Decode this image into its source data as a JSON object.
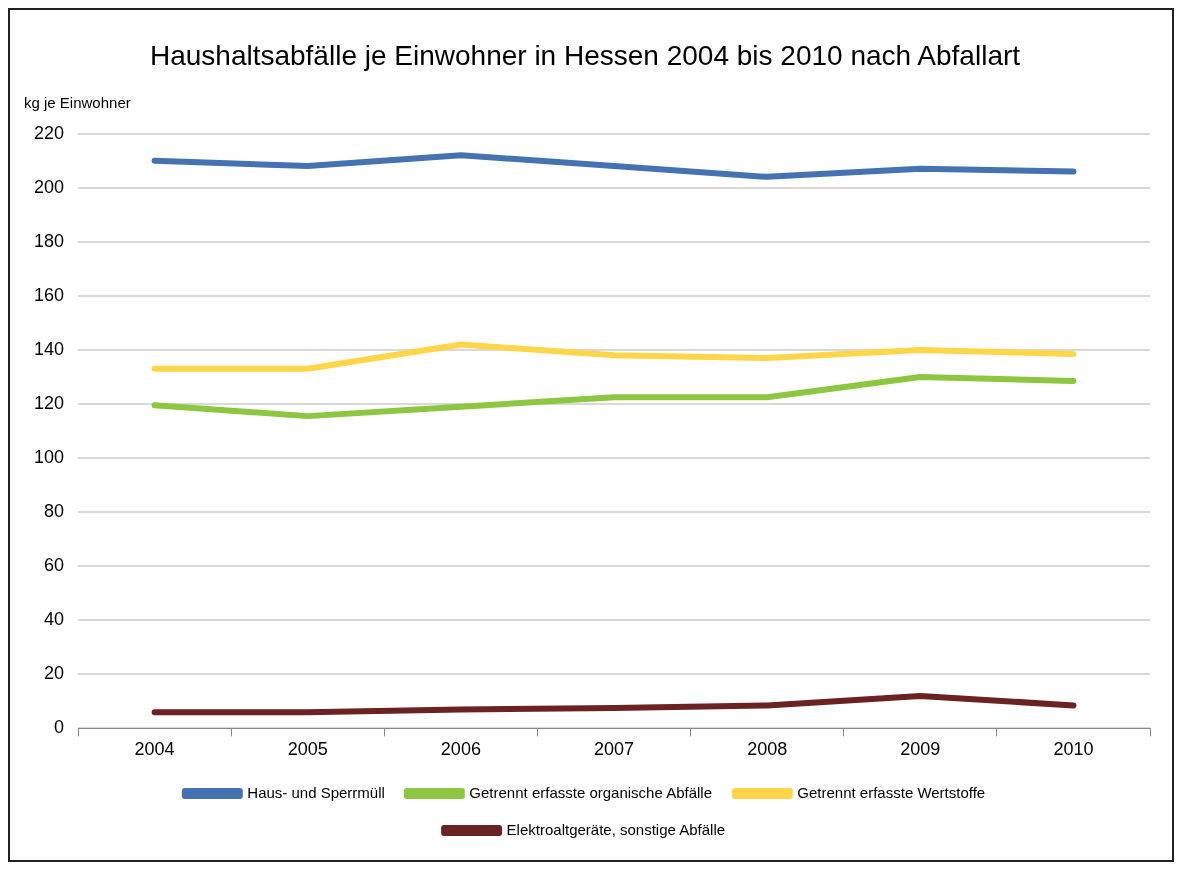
{
  "chart_data": {
    "type": "line",
    "title": "Haushaltsabfälle je Einwohner in Hessen 2004 bis 2010 nach Abfallart",
    "ylabel": "kg je Einwohner",
    "categories": [
      "2004",
      "2005",
      "2006",
      "2007",
      "2008",
      "2009",
      "2010"
    ],
    "series": [
      {
        "name": "Haus- und Sperrmüll",
        "color": "#4572b0",
        "values": [
          210,
          208,
          212,
          208,
          204,
          207,
          206
        ]
      },
      {
        "name": "Getrennt erfasste organische Abfälle",
        "color": "#8dc641",
        "values": [
          119.5,
          115.5,
          119,
          122.5,
          122.5,
          130,
          128.5
        ]
      },
      {
        "name": "Getrennt erfasste Wertstoffe",
        "color": "#ffd54a",
        "values": [
          133,
          133,
          142,
          138,
          137,
          140,
          138.5
        ]
      },
      {
        "name": "Elektroaltgeräte, sonstige Abfälle",
        "color": "#6a2222",
        "values": [
          6,
          6,
          7,
          7.5,
          8.5,
          12,
          8.5
        ]
      }
    ],
    "ylim": [
      0,
      220
    ],
    "yticks": [
      0,
      20,
      40,
      60,
      80,
      100,
      120,
      140,
      160,
      180,
      200,
      220
    ],
    "grid": "y",
    "legend": "bottom",
    "marker": "none",
    "line_style": "solid"
  }
}
